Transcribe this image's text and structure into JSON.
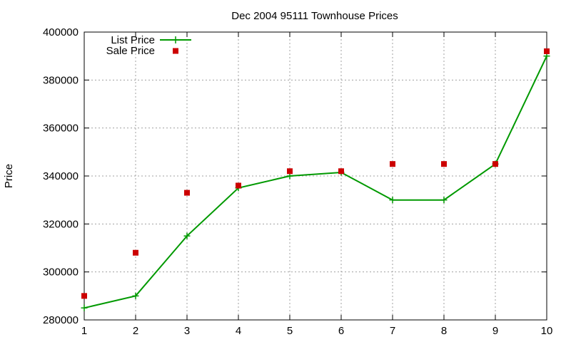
{
  "chart_data": {
    "type": "line",
    "title": "Dec 2004 95111 Townhouse Prices",
    "xlabel": "",
    "ylabel": "Price",
    "x": [
      1,
      2,
      3,
      4,
      5,
      6,
      7,
      8,
      9,
      10
    ],
    "xlim": [
      1,
      10
    ],
    "ylim": [
      280000,
      400000
    ],
    "yticks": [
      280000,
      300000,
      320000,
      340000,
      360000,
      380000,
      400000
    ],
    "xticks": [
      1,
      2,
      3,
      4,
      5,
      6,
      7,
      8,
      9,
      10
    ],
    "grid": true,
    "legend_position": "top-left",
    "series": [
      {
        "name": "List Price",
        "style": "linespoints",
        "marker": "plus",
        "color": "#009900",
        "values": [
          285000,
          290000,
          315000,
          335000,
          340000,
          341500,
          330000,
          330000,
          345000,
          390000
        ]
      },
      {
        "name": "Sale Price",
        "style": "points",
        "marker": "square",
        "color": "#cc0000",
        "values": [
          290000,
          308000,
          333000,
          336000,
          342000,
          342000,
          345000,
          345000,
          345000,
          392000
        ]
      }
    ]
  }
}
